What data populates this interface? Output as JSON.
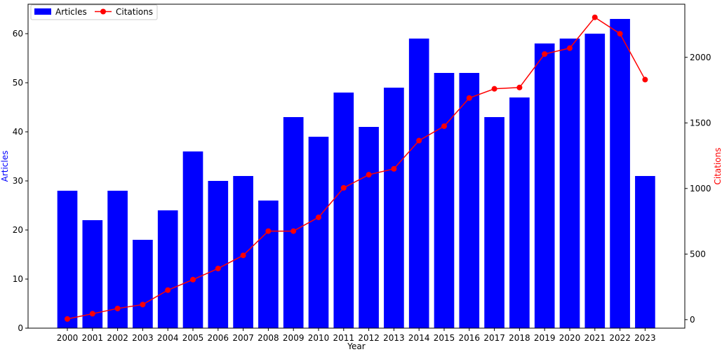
{
  "chart_data": {
    "type": "bar",
    "title": "",
    "xlabel": "Year",
    "ylabel_left": "Articles",
    "ylabel_right": "Citations",
    "categories": [
      "2000",
      "2001",
      "2002",
      "2003",
      "2004",
      "2005",
      "2006",
      "2007",
      "2008",
      "2009",
      "2010",
      "2011",
      "2012",
      "2013",
      "2014",
      "2015",
      "2016",
      "2017",
      "2018",
      "2019",
      "2020",
      "2021",
      "2022",
      "2023"
    ],
    "series": [
      {
        "name": "Articles",
        "type": "bar",
        "axis": "left",
        "color": "#0000ff",
        "values": [
          28,
          22,
          28,
          18,
          24,
          36,
          30,
          31,
          26,
          43,
          39,
          48,
          41,
          49,
          59,
          52,
          52,
          43,
          47,
          58,
          59,
          60,
          63,
          31
        ]
      },
      {
        "name": "Citations",
        "type": "line",
        "axis": "right",
        "color": "#ff0000",
        "marker": "circle",
        "values": [
          5,
          45,
          85,
          115,
          225,
          305,
          390,
          490,
          675,
          675,
          780,
          1005,
          1105,
          1150,
          1365,
          1475,
          1690,
          1760,
          1770,
          2025,
          2070,
          2305,
          2180,
          1830
        ]
      }
    ],
    "ylim_left": [
      0,
      66
    ],
    "yticks_left": [
      0,
      10,
      20,
      30,
      40,
      50,
      60
    ],
    "ylim_right": [
      -65,
      2405
    ],
    "yticks_right": [
      0,
      500,
      1000,
      1500,
      2000
    ],
    "left_axis_label_color": "#0000ff",
    "right_axis_label_color": "#ff0000",
    "grid": false,
    "legend_placement": "top-left"
  }
}
